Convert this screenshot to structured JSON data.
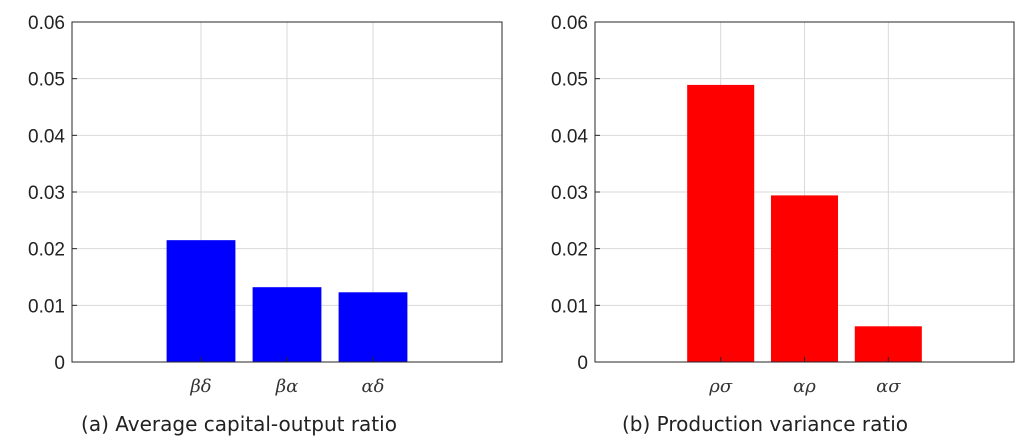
{
  "chart_data": [
    {
      "type": "bar",
      "title": "",
      "xlabel": "",
      "ylabel": "",
      "caption": "(a) Average capital-output ratio",
      "categories": [
        "βδ",
        "βα",
        "αδ"
      ],
      "values": [
        0.0215,
        0.0132,
        0.0123
      ],
      "ylim": [
        0,
        0.06
      ],
      "yticks": [
        "0",
        "0.01",
        "0.02",
        "0.03",
        "0.04",
        "0.05",
        "0.06"
      ],
      "grid": true,
      "color": "#0000ff"
    },
    {
      "type": "bar",
      "title": "",
      "xlabel": "",
      "ylabel": "",
      "caption": "(b) Production variance ratio",
      "categories": [
        "ρσ",
        "αρ",
        "ασ"
      ],
      "values": [
        0.0489,
        0.0294,
        0.0063
      ],
      "ylim": [
        0,
        0.06
      ],
      "yticks": [
        "0",
        "0.01",
        "0.02",
        "0.03",
        "0.04",
        "0.05",
        "0.06"
      ],
      "grid": true,
      "color": "#ff0000"
    }
  ]
}
